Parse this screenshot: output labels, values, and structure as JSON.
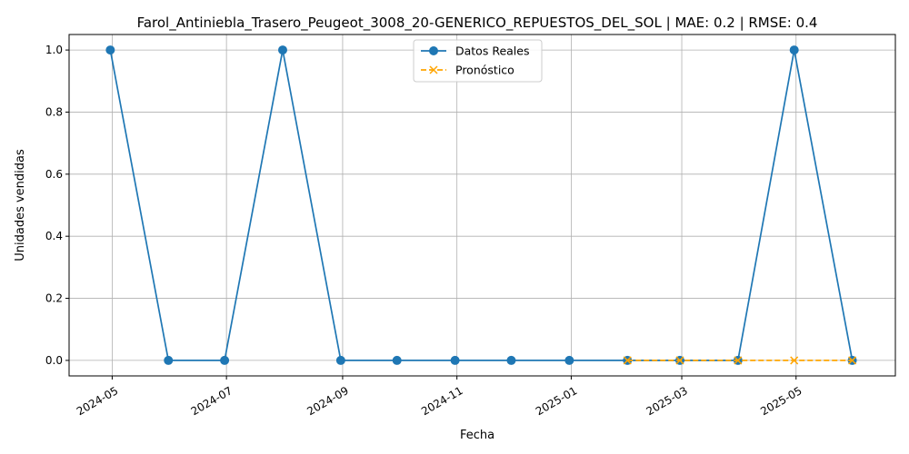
{
  "chart_data": {
    "type": "line",
    "title": "Farol_Antiniebla_Trasero_Peugeot_3008_20-GENERICO_REPUESTOS_DEL_SOL | MAE: 0.2 | RMSE: 0.4",
    "xlabel": "Fecha",
    "ylabel": "Unidades vendidas",
    "xlim": [
      "2024-04-08",
      "2025-06-23"
    ],
    "ylim": [
      -0.05,
      1.05
    ],
    "grid": true,
    "legend_position": "top-center",
    "x_ticks": [
      "2024-05-01",
      "2024-07-01",
      "2024-09-01",
      "2024-11-01",
      "2025-01-01",
      "2025-03-01",
      "2025-05-01"
    ],
    "x_tick_labels": [
      "2024-05",
      "2024-07",
      "2024-09",
      "2024-11",
      "2025-01",
      "2025-03",
      "2025-05"
    ],
    "y_ticks": [
      0.0,
      0.2,
      0.4,
      0.6,
      0.8,
      1.0
    ],
    "y_tick_labels": [
      "0.0",
      "0.2",
      "0.4",
      "0.6",
      "0.8",
      "1.0"
    ],
    "series": [
      {
        "name": "Datos Reales",
        "color": "#1f77b4",
        "line_style": "solid",
        "marker": "circle",
        "x": [
          "2024-04-30",
          "2024-05-31",
          "2024-06-30",
          "2024-07-31",
          "2024-08-31",
          "2024-09-30",
          "2024-10-31",
          "2024-11-30",
          "2024-12-31",
          "2025-01-31",
          "2025-02-28",
          "2025-03-31",
          "2025-04-30",
          "2025-05-31"
        ],
        "values": [
          1,
          0,
          0,
          1,
          0,
          0,
          0,
          0,
          0,
          0,
          0,
          0,
          1,
          0
        ]
      },
      {
        "name": "Pronóstico",
        "color": "#ffa500",
        "line_style": "dashed",
        "marker": "x",
        "x": [
          "2025-01-31",
          "2025-02-28",
          "2025-03-31",
          "2025-04-30",
          "2025-05-31"
        ],
        "values": [
          0,
          0,
          0,
          0,
          0
        ]
      }
    ]
  }
}
